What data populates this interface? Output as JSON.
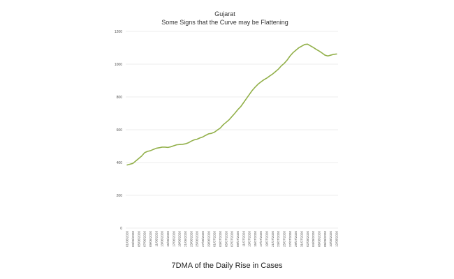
{
  "chart_data": {
    "type": "line",
    "title": "Gujarat",
    "subtitle": "Some Signs that the Curve may be Flattening",
    "caption": "7DMA of the Daily Rise in Cases",
    "ylim": [
      0,
      1200
    ],
    "yticks": [
      0,
      200,
      400,
      600,
      800,
      1000,
      1200
    ],
    "grid": true,
    "line_color": "#92b04a",
    "x": [
      "01/06/2020",
      "02/06/2020",
      "03/06/2020",
      "04/06/2020",
      "05/06/2020",
      "06/06/2020",
      "07/06/2020",
      "08/06/2020",
      "09/06/2020",
      "10/06/2020",
      "11/06/2020",
      "12/06/2020",
      "13/06/2020",
      "14/06/2020",
      "15/06/2020",
      "16/06/2020",
      "17/06/2020",
      "18/06/2020",
      "19/06/2020",
      "20/06/2020",
      "21/06/2020",
      "22/06/2020",
      "23/06/2020",
      "24/06/2020",
      "25/06/2020",
      "26/06/2020",
      "27/06/2020",
      "28/06/2020",
      "29/06/2020",
      "30/06/2020",
      "01/07/2020",
      "02/07/2020",
      "03/07/2020",
      "04/07/2020",
      "05/07/2020",
      "06/07/2020",
      "07/07/2020",
      "08/07/2020",
      "09/07/2020",
      "10/07/2020",
      "11/07/2020",
      "12/07/2020",
      "13/07/2020",
      "14/07/2020",
      "15/07/2020",
      "16/07/2020",
      "17/07/2020",
      "18/07/2020",
      "19/07/2020",
      "20/07/2020",
      "21/07/2020",
      "22/07/2020",
      "23/07/2020",
      "24/07/2020",
      "25/07/2020",
      "26/07/2020",
      "27/07/2020",
      "28/07/2020",
      "29/07/2020",
      "30/07/2020",
      "31/07/2020",
      "01/08/2020",
      "02/08/2020",
      "03/08/2020",
      "04/08/2020",
      "05/08/2020",
      "06/08/2020",
      "07/08/2020",
      "08/08/2020",
      "09/08/2020",
      "10/08/2020",
      "11/08/2020",
      "12/08/2020"
    ],
    "xtick_labels": [
      "01/06/2020",
      "03/06/2020",
      "05/06/2020",
      "07/06/2020",
      "09/06/2020",
      "11/06/2020",
      "13/06/2020",
      "15/06/2020",
      "17/06/2020",
      "19/06/2020",
      "21/06/2020",
      "23/06/2020",
      "25/06/2020",
      "27/06/2020",
      "29/06/2020",
      "01/07/2020",
      "03/07/2020",
      "05/07/2020",
      "07/07/2020",
      "09/07/2020",
      "11/07/2020",
      "13/07/2020",
      "15/07/2020",
      "17/07/2020",
      "19/07/2020",
      "21/07/2020",
      "23/07/2020",
      "25/07/2020",
      "27/07/2020",
      "29/07/2020",
      "31/07/2020",
      "02/08/2020",
      "04/08/2020",
      "06/08/2020",
      "08/08/2020",
      "10/08/2020",
      "12/08/2020"
    ],
    "series": [
      {
        "values": [
          385,
          390,
          395,
          410,
          425,
          440,
          460,
          468,
          472,
          480,
          487,
          490,
          494,
          494,
          492,
          496,
          502,
          508,
          510,
          511,
          514,
          520,
          530,
          538,
          542,
          550,
          556,
          566,
          575,
          578,
          585,
          598,
          610,
          630,
          645,
          660,
          680,
          700,
          722,
          740,
          765,
          790,
          815,
          840,
          860,
          878,
          892,
          905,
          915,
          928,
          940,
          955,
          970,
          990,
          1005,
          1025,
          1050,
          1070,
          1085,
          1100,
          1110,
          1120,
          1122,
          1112,
          1102,
          1090,
          1080,
          1068,
          1055,
          1050,
          1055,
          1060,
          1062
        ]
      }
    ]
  }
}
